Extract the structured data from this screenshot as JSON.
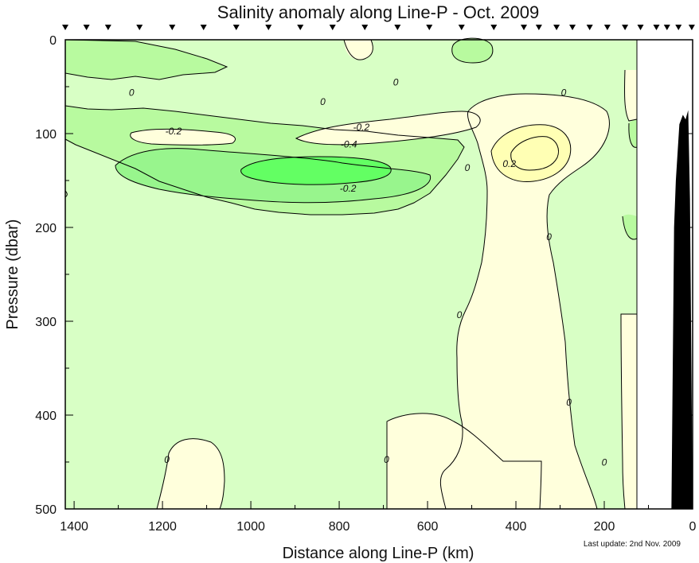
{
  "chart_data": {
    "type": "contour",
    "title": "Salinity anomaly along Line-P - Oct. 2009",
    "xlabel": "Distance along Line-P (km)",
    "ylabel": "Pressure (dbar)",
    "xlim": [
      1420,
      0
    ],
    "ylim": [
      500,
      0
    ],
    "x_ticks": [
      1400,
      1200,
      1000,
      800,
      600,
      400,
      200,
      0
    ],
    "y_ticks": [
      0,
      100,
      200,
      300,
      400,
      500
    ],
    "contour_levels": [
      -0.6,
      -0.4,
      -0.2,
      0,
      0.2,
      0.4
    ],
    "contour_labels": [
      {
        "text": "0",
        "x": 1270,
        "y": 58
      },
      {
        "text": "0",
        "x": 837,
        "y": 68
      },
      {
        "text": "0",
        "x": 672,
        "y": 47
      },
      {
        "text": "0",
        "x": 292,
        "y": 58
      },
      {
        "text": "-0.2",
        "x": 1175,
        "y": 99
      },
      {
        "text": "-0.2",
        "x": 750,
        "y": 95
      },
      {
        "text": "-0.4",
        "x": 778,
        "y": 113
      },
      {
        "text": "-0.2",
        "x": 780,
        "y": 160
      },
      {
        "text": "0",
        "x": 510,
        "y": 138
      },
      {
        "text": "0.2",
        "x": 415,
        "y": 134
      },
      {
        "text": "0",
        "x": 325,
        "y": 212
      },
      {
        "text": "0",
        "x": 528,
        "y": 295
      },
      {
        "text": "0",
        "x": 280,
        "y": 388
      },
      {
        "text": "0",
        "x": 1190,
        "y": 449
      },
      {
        "text": "0",
        "x": 693,
        "y": 449
      },
      {
        "text": "0",
        "x": 200,
        "y": 452
      }
    ],
    "station_positions_km": [
      1420,
      1372,
      1323,
      1252,
      1178,
      1107,
      1033,
      960,
      888,
      815,
      742,
      668,
      596,
      523,
      450,
      382,
      348,
      308,
      272,
      233,
      193,
      153,
      118,
      82,
      58,
      32,
      2
    ],
    "bathymetry_profile": [
      {
        "x": 0,
        "y": 500
      },
      {
        "x": 6,
        "y": 170
      },
      {
        "x": 10,
        "y": 75
      },
      {
        "x": 16,
        "y": 85
      },
      {
        "x": 22,
        "y": 80
      },
      {
        "x": 30,
        "y": 90
      },
      {
        "x": 38,
        "y": 150
      },
      {
        "x": 42,
        "y": 200
      },
      {
        "x": 48,
        "y": 500
      }
    ],
    "data_coverage_limit_km": 122,
    "colors": {
      "strong_negative": "#63ff63",
      "mid_negative": "#98f58d",
      "weak_negative": "#b8fa9f",
      "near_zero_negative": "#d8ffc5",
      "near_zero_positive": "#ffffdc",
      "weak_positive": "#ffffb4",
      "bathymetry": "#000000"
    }
  },
  "footer": {
    "last_update": "Last update: 2nd Nov. 2009"
  }
}
